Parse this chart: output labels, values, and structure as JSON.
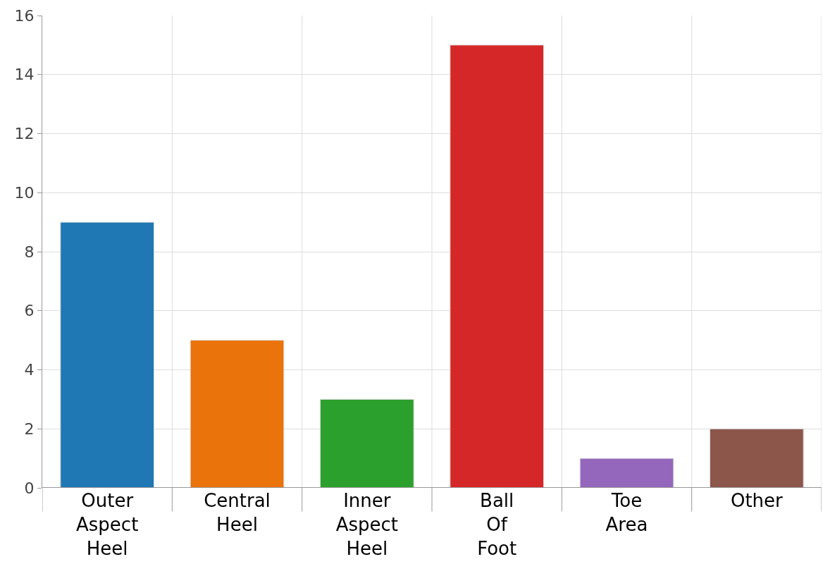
{
  "chart_data": {
    "type": "bar",
    "categories": [
      "Outer Aspect Heel",
      "Central Heel",
      "Inner Aspect Heel",
      "Ball Of Foot",
      "Toe Area",
      "Other"
    ],
    "values": [
      9,
      5,
      3,
      15,
      1,
      2
    ],
    "colors": [
      "#1f77b4",
      "#eb730b",
      "#2ca02c",
      "#d62728",
      "#9467bd",
      "#8c564b"
    ],
    "ylim": [
      0,
      16
    ],
    "yticks": [
      0,
      2,
      4,
      6,
      8,
      10,
      12,
      14,
      16
    ],
    "grid": true
  }
}
